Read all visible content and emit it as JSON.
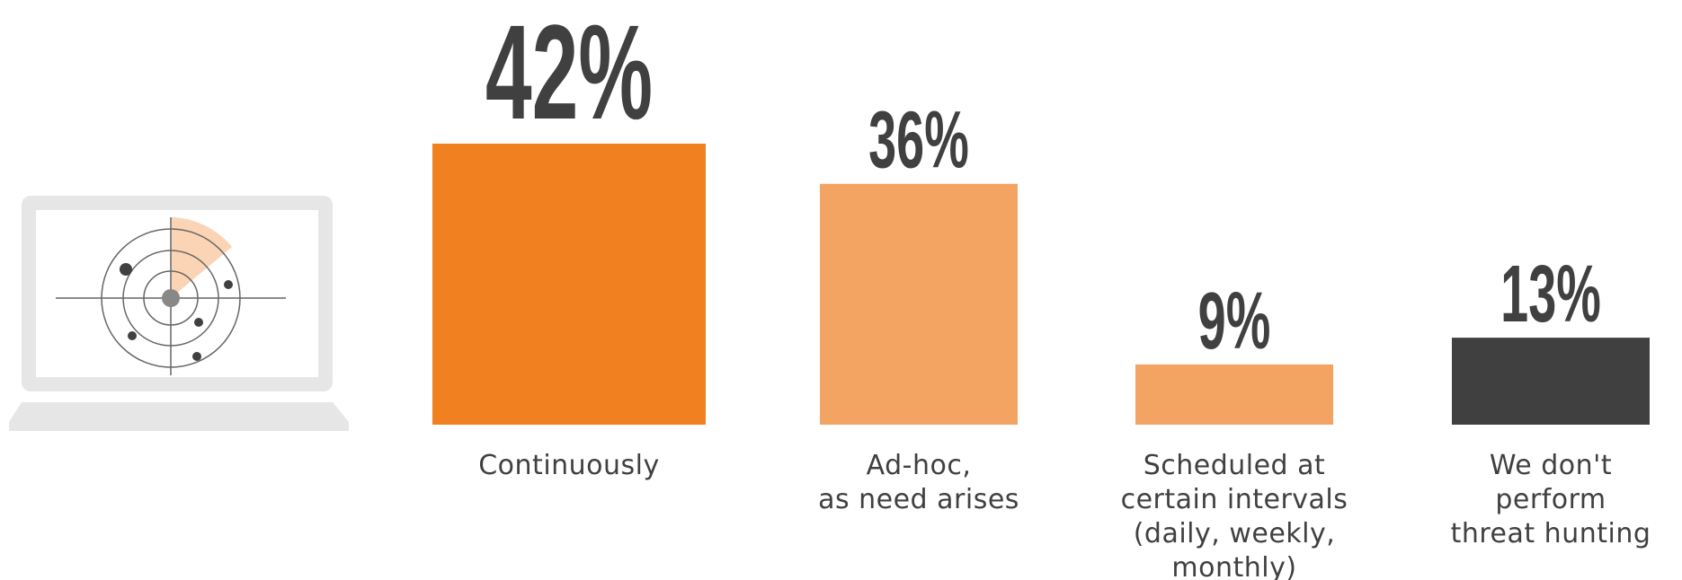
{
  "chart_data": {
    "type": "bar",
    "categories": [
      [
        "Continuously"
      ],
      [
        "Ad-hoc,",
        "as need arises"
      ],
      [
        "Scheduled at",
        "certain intervals",
        "(daily, weekly,",
        "monthly)"
      ],
      [
        "We don't",
        "perform",
        "threat hunting"
      ]
    ],
    "values": [
      42,
      36,
      9,
      13
    ],
    "value_labels": [
      "42%",
      "36%",
      "9%",
      "13%"
    ],
    "colors": [
      "#F08020",
      "#F3A462",
      "#F3A462",
      "#404040"
    ],
    "title": "",
    "xlabel": "",
    "ylabel": "",
    "ylim": [
      0,
      42
    ],
    "grid": false,
    "legend": "none"
  },
  "illustration": {
    "icon": "laptop-radar-icon",
    "colors": {
      "laptop": "#E6E6E6",
      "screen": "#FFFFFF",
      "radar_lines": "#555555",
      "sweep": "#FAD4B4",
      "blips": "#404040"
    }
  }
}
